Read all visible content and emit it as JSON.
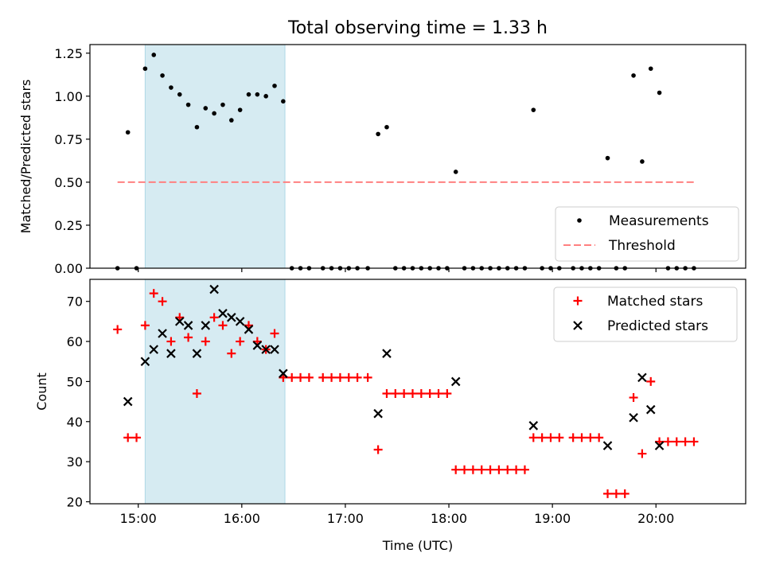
{
  "title": "Total observing time = 1.33 h",
  "chart_data": [
    {
      "type": "scatter",
      "ylabel": "Matched/Predicted stars",
      "xlabel": "",
      "xlim": [
        "14:32",
        "20:52"
      ],
      "ylim": [
        0,
        1.3
      ],
      "xticks": [
        "15:00",
        "16:00",
        "17:00",
        "18:00",
        "19:00",
        "20:00"
      ],
      "yticks": [
        "0.00",
        "0.25",
        "0.50",
        "0.75",
        "1.00",
        "1.25"
      ],
      "shaded_span": [
        "15:04",
        "16:25"
      ],
      "threshold": {
        "name": "Threshold",
        "value": 0.5,
        "x_range": [
          "14:48",
          "20:22"
        ],
        "color": "#ff8080",
        "style": "dashed"
      },
      "legend_position": "lower right",
      "series": [
        {
          "name": "Measurements",
          "marker": "dot",
          "color": "#000000",
          "points": [
            [
              "14:48",
              0
            ],
            [
              "14:54",
              0.79
            ],
            [
              "14:59",
              0
            ],
            [
              "15:04",
              1.16
            ],
            [
              "15:09",
              1.24
            ],
            [
              "15:14",
              1.12
            ],
            [
              "15:19",
              1.05
            ],
            [
              "15:24",
              1.01
            ],
            [
              "15:29",
              0.95
            ],
            [
              "15:34",
              0.82
            ],
            [
              "15:39",
              0.93
            ],
            [
              "15:44",
              0.9
            ],
            [
              "15:49",
              0.95
            ],
            [
              "15:54",
              0.86
            ],
            [
              "15:59",
              0.92
            ],
            [
              "16:04",
              1.01
            ],
            [
              "16:09",
              1.01
            ],
            [
              "16:14",
              1.0
            ],
            [
              "16:19",
              1.06
            ],
            [
              "16:24",
              0.97
            ],
            [
              "16:29",
              0
            ],
            [
              "16:34",
              0
            ],
            [
              "16:39",
              0
            ],
            [
              "16:47",
              0
            ],
            [
              "16:52",
              0
            ],
            [
              "16:57",
              0
            ],
            [
              "17:02",
              0
            ],
            [
              "17:07",
              0
            ],
            [
              "17:13",
              0
            ],
            [
              "17:19",
              0.78
            ],
            [
              "17:24",
              0.82
            ],
            [
              "17:29",
              0
            ],
            [
              "17:34",
              0
            ],
            [
              "17:39",
              0
            ],
            [
              "17:44",
              0
            ],
            [
              "17:49",
              0
            ],
            [
              "17:54",
              0
            ],
            [
              "17:59",
              0
            ],
            [
              "18:04",
              0.56
            ],
            [
              "18:09",
              0
            ],
            [
              "18:14",
              0
            ],
            [
              "18:19",
              0
            ],
            [
              "18:24",
              0
            ],
            [
              "18:29",
              0
            ],
            [
              "18:34",
              0
            ],
            [
              "18:39",
              0
            ],
            [
              "18:44",
              0
            ],
            [
              "18:49",
              0.92
            ],
            [
              "18:54",
              0
            ],
            [
              "18:59",
              0
            ],
            [
              "19:04",
              0
            ],
            [
              "19:12",
              0
            ],
            [
              "19:17",
              0
            ],
            [
              "19:22",
              0
            ],
            [
              "19:27",
              0
            ],
            [
              "19:32",
              0.64
            ],
            [
              "19:37",
              0
            ],
            [
              "19:42",
              0
            ],
            [
              "19:47",
              1.12
            ],
            [
              "19:52",
              0.62
            ],
            [
              "19:57",
              1.16
            ],
            [
              "20:02",
              1.02
            ],
            [
              "20:07",
              0
            ],
            [
              "20:12",
              0
            ],
            [
              "20:17",
              0
            ],
            [
              "20:22",
              0
            ]
          ]
        }
      ]
    },
    {
      "type": "scatter",
      "ylabel": "Count",
      "xlabel": "Time (UTC)",
      "xlim": [
        "14:32",
        "20:52"
      ],
      "ylim": [
        19.5,
        75.5
      ],
      "xticks": [
        "15:00",
        "16:00",
        "17:00",
        "18:00",
        "19:00",
        "20:00"
      ],
      "yticks": [
        "20",
        "30",
        "40",
        "50",
        "60",
        "70"
      ],
      "shaded_span": [
        "15:04",
        "16:25"
      ],
      "legend_position": "upper right",
      "series": [
        {
          "name": "Matched stars",
          "marker": "plus",
          "color": "#ff0000",
          "points": [
            [
              "14:48",
              63
            ],
            [
              "14:54",
              36
            ],
            [
              "14:59",
              36
            ],
            [
              "15:04",
              64
            ],
            [
              "15:09",
              72
            ],
            [
              "15:14",
              70
            ],
            [
              "15:19",
              60
            ],
            [
              "15:24",
              66
            ],
            [
              "15:29",
              61
            ],
            [
              "15:34",
              47
            ],
            [
              "15:39",
              60
            ],
            [
              "15:44",
              66
            ],
            [
              "15:49",
              64
            ],
            [
              "15:54",
              57
            ],
            [
              "15:59",
              60
            ],
            [
              "16:04",
              64
            ],
            [
              "16:09",
              60
            ],
            [
              "16:14",
              58
            ],
            [
              "16:19",
              62
            ],
            [
              "16:24",
              51
            ],
            [
              "16:29",
              51
            ],
            [
              "16:34",
              51
            ],
            [
              "16:39",
              51
            ],
            [
              "16:47",
              51
            ],
            [
              "16:52",
              51
            ],
            [
              "16:57",
              51
            ],
            [
              "17:02",
              51
            ],
            [
              "17:07",
              51
            ],
            [
              "17:13",
              51
            ],
            [
              "17:19",
              33
            ],
            [
              "17:24",
              47
            ],
            [
              "17:29",
              47
            ],
            [
              "17:34",
              47
            ],
            [
              "17:39",
              47
            ],
            [
              "17:44",
              47
            ],
            [
              "17:49",
              47
            ],
            [
              "17:54",
              47
            ],
            [
              "17:59",
              47
            ],
            [
              "18:04",
              28
            ],
            [
              "18:09",
              28
            ],
            [
              "18:14",
              28
            ],
            [
              "18:19",
              28
            ],
            [
              "18:24",
              28
            ],
            [
              "18:29",
              28
            ],
            [
              "18:34",
              28
            ],
            [
              "18:39",
              28
            ],
            [
              "18:44",
              28
            ],
            [
              "18:49",
              36
            ],
            [
              "18:54",
              36
            ],
            [
              "18:59",
              36
            ],
            [
              "19:04",
              36
            ],
            [
              "19:12",
              36
            ],
            [
              "19:17",
              36
            ],
            [
              "19:22",
              36
            ],
            [
              "19:27",
              36
            ],
            [
              "19:32",
              22
            ],
            [
              "19:37",
              22
            ],
            [
              "19:42",
              22
            ],
            [
              "19:47",
              46
            ],
            [
              "19:52",
              32
            ],
            [
              "19:57",
              50
            ],
            [
              "20:02",
              35
            ],
            [
              "20:07",
              35
            ],
            [
              "20:12",
              35
            ],
            [
              "20:17",
              35
            ],
            [
              "20:22",
              35
            ]
          ]
        },
        {
          "name": "Predicted stars",
          "marker": "x",
          "color": "#000000",
          "points": [
            [
              "14:54",
              45
            ],
            [
              "15:04",
              55
            ],
            [
              "15:09",
              58
            ],
            [
              "15:14",
              62
            ],
            [
              "15:19",
              57
            ],
            [
              "15:24",
              65
            ],
            [
              "15:29",
              64
            ],
            [
              "15:34",
              57
            ],
            [
              "15:39",
              64
            ],
            [
              "15:44",
              73
            ],
            [
              "15:49",
              67
            ],
            [
              "15:54",
              66
            ],
            [
              "15:59",
              65
            ],
            [
              "16:04",
              63
            ],
            [
              "16:09",
              59
            ],
            [
              "16:14",
              58
            ],
            [
              "16:19",
              58
            ],
            [
              "16:24",
              52
            ],
            [
              "17:19",
              42
            ],
            [
              "17:24",
              57
            ],
            [
              "18:04",
              50
            ],
            [
              "18:49",
              39
            ],
            [
              "19:32",
              34
            ],
            [
              "19:47",
              41
            ],
            [
              "19:52",
              51
            ],
            [
              "19:57",
              43
            ],
            [
              "20:02",
              34
            ]
          ]
        }
      ]
    }
  ]
}
